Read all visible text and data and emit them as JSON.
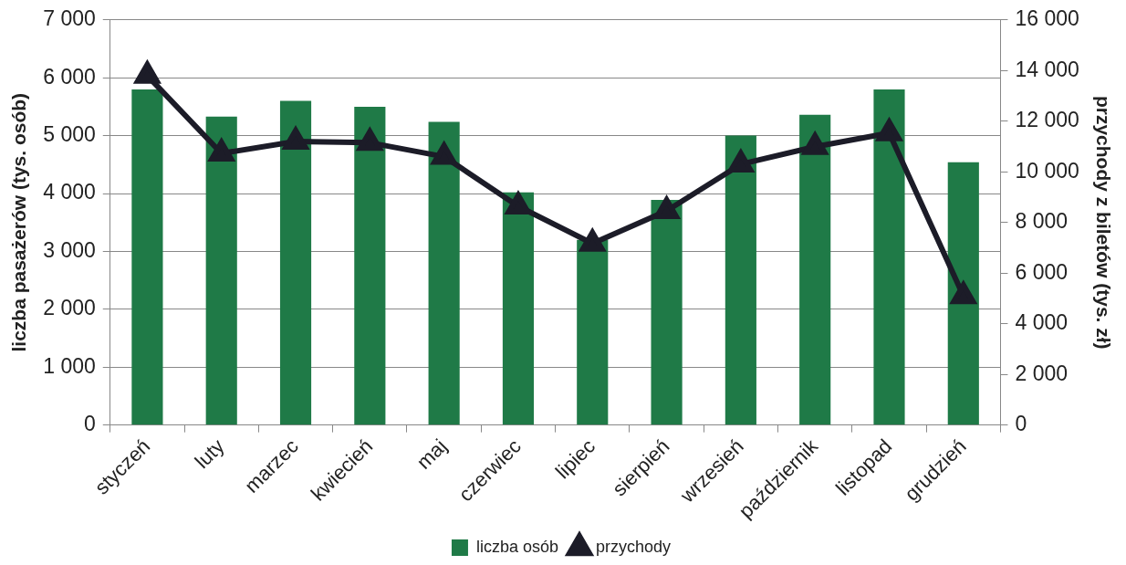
{
  "chart_data": {
    "type": "bar",
    "categories": [
      "styczeń",
      "luty",
      "marzec",
      "kwiecień",
      "maj",
      "czerwiec",
      "lipiec",
      "sierpień",
      "wrzesień",
      "październik",
      "listopad",
      "grudzień"
    ],
    "series": [
      {
        "name": "liczba osób",
        "color": "#1f7a47",
        "values": [
          5800,
          5330,
          5600,
          5500,
          5240,
          4020,
          3200,
          3890,
          5000,
          5360,
          5800,
          4540
        ]
      },
      {
        "name": "przychody",
        "type": "line",
        "axis": "y2",
        "color": "#1c1c28",
        "marker": "triangle",
        "line_style": "solid",
        "values": [
          13800,
          10730,
          11200,
          11150,
          10600,
          8640,
          7170,
          8460,
          10300,
          10990,
          11530,
          5100
        ]
      }
    ],
    "ylabel": "liczba pasażerów (tys. osób)",
    "y2label": "przychody z biletów (tys. zł)",
    "ylim": [
      0,
      7000
    ],
    "yticks": [
      {
        "value": 0,
        "label": "0"
      },
      {
        "value": 1000,
        "label": "1 000"
      },
      {
        "value": 2000,
        "label": "2 000"
      },
      {
        "value": 3000,
        "label": "3 000"
      },
      {
        "value": 4000,
        "label": "4 000"
      },
      {
        "value": 5000,
        "label": "5 000"
      },
      {
        "value": 6000,
        "label": "6 000"
      },
      {
        "value": 7000,
        "label": "7 000"
      }
    ],
    "y2lim": [
      0,
      16000
    ],
    "y2ticks": [
      {
        "value": 0,
        "label": "0"
      },
      {
        "value": 2000,
        "label": "2 000"
      },
      {
        "value": 4000,
        "label": "4 000"
      },
      {
        "value": 6000,
        "label": "6 000"
      },
      {
        "value": 8000,
        "label": "8 000"
      },
      {
        "value": 10000,
        "label": "10 000"
      },
      {
        "value": 12000,
        "label": "12 000"
      },
      {
        "value": 14000,
        "label": "14 000"
      },
      {
        "value": 16000,
        "label": "16 000"
      }
    ],
    "grid": "y",
    "legend": "bottom"
  }
}
